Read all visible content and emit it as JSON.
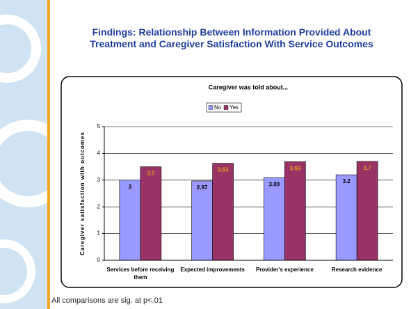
{
  "title": "Findings: Relationship Between Information Provided About Treatment and Caregiver Satisfaction With Service Outcomes",
  "footnote": "All comparisons are sig. at p<.01",
  "chart_data": {
    "type": "bar",
    "title": "Caregiver was told about...",
    "y_label": "Caregiver satisfaction with outcomes",
    "categories": [
      "Services before receiving them",
      "Expected improvements",
      "Provider's experience",
      "Research evidence"
    ],
    "series": [
      {
        "name": "No",
        "color": "#9999ff",
        "label_color": "#000000",
        "values": [
          3,
          2.97,
          3.09,
          3.2
        ]
      },
      {
        "name": "Yes",
        "color": "#993366",
        "label_color": "#ffcc00",
        "values": [
          3.5,
          3.63,
          3.69,
          3.7
        ]
      }
    ],
    "ylim": [
      0,
      5
    ],
    "yticks": [
      0,
      1,
      2,
      3,
      4,
      5
    ],
    "grid": true,
    "legend": "top"
  }
}
